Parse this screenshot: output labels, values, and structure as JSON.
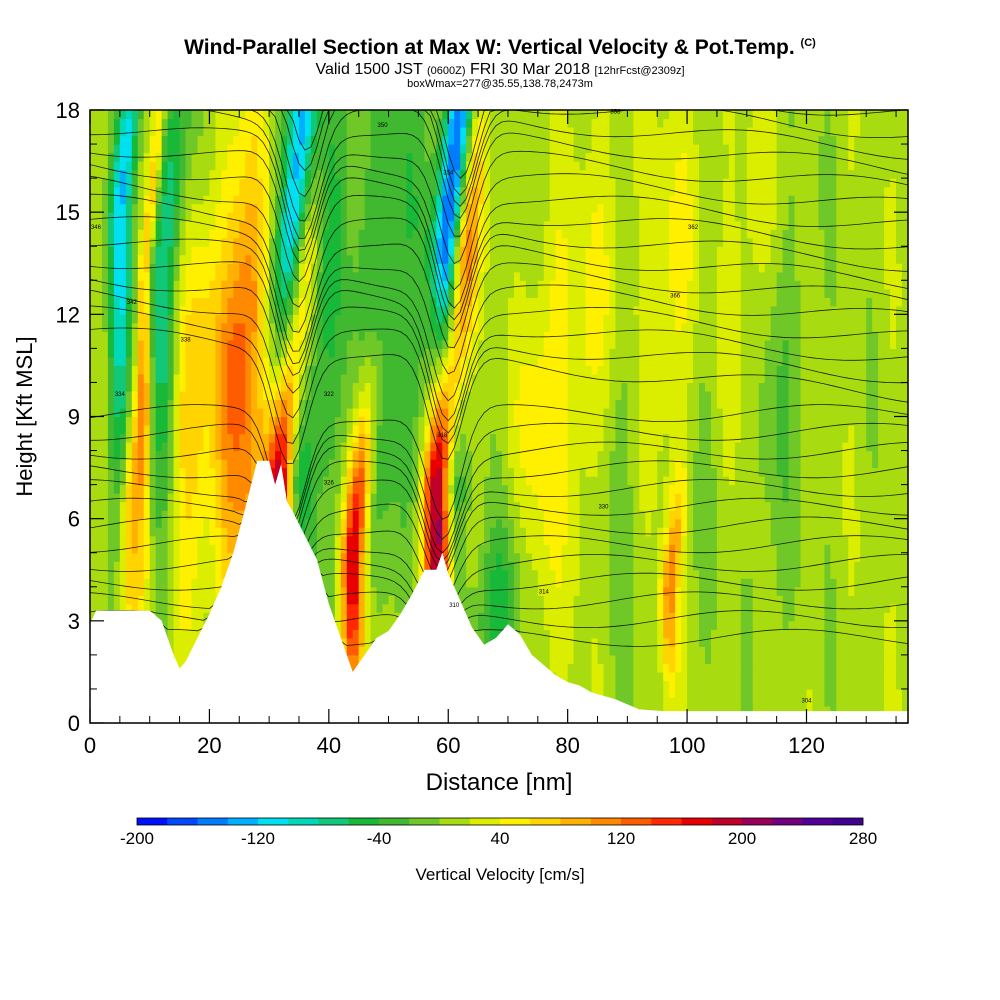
{
  "header": {
    "title": "Wind-Parallel Section at Max W: Vertical Velocity & Pot.Temp.",
    "title_mark": "(C)",
    "valid_label": "Valid 1500 JST",
    "valid_zulu": "(0600Z)",
    "valid_date": "FRI 30 Mar 2018",
    "forecast_info": "[12hrFcst@2309z]",
    "box_info": "boxWmax=277@35.55,138.78,2473m"
  },
  "chart_data": {
    "type": "heatmap",
    "xlabel": "Distance [nm]",
    "ylabel": "Height [Kft MSL]",
    "xlim": [
      0,
      137
    ],
    "ylim": [
      0,
      18
    ],
    "x_ticks": [
      0,
      20,
      40,
      60,
      80,
      100,
      120
    ],
    "y_ticks": [
      0,
      3,
      6,
      9,
      12,
      15,
      18
    ],
    "x_tick_labels": [
      "0",
      "20",
      "40",
      "60",
      "80",
      "100",
      "120"
    ],
    "y_tick_labels": [
      "0",
      "3",
      "6",
      "9",
      "12",
      "15",
      "18"
    ],
    "colorbar": {
      "label": "Vertical Velocity [cm/s]",
      "min": -200,
      "max": 280,
      "step": 20,
      "tick_values": [
        -200,
        -120,
        -40,
        40,
        120,
        200,
        280
      ],
      "tick_labels": [
        "-200",
        "-120",
        "-40",
        "40",
        "120",
        "200",
        "280"
      ],
      "colors": [
        "#0010ff",
        "#0048ff",
        "#007cff",
        "#00b0ff",
        "#00e0f0",
        "#00d8b8",
        "#10c878",
        "#18b838",
        "#40b830",
        "#70c828",
        "#a8dc10",
        "#dcee00",
        "#fff000",
        "#ffd400",
        "#ffb000",
        "#ff8a00",
        "#ff5c00",
        "#ff2800",
        "#e80000",
        "#c00028",
        "#980058",
        "#700080",
        "#500098",
        "#400090"
      ]
    },
    "terrain": [
      [
        0,
        2.9
      ],
      [
        1,
        3.3
      ],
      [
        6,
        3.3
      ],
      [
        10,
        3.3
      ],
      [
        12,
        3.0
      ],
      [
        14,
        2.0
      ],
      [
        15,
        1.6
      ],
      [
        16,
        1.8
      ],
      [
        18,
        2.5
      ],
      [
        20,
        3.2
      ],
      [
        22,
        4.0
      ],
      [
        24,
        5.0
      ],
      [
        26,
        6.3
      ],
      [
        28,
        7.7
      ],
      [
        30,
        7.7
      ],
      [
        31,
        7.0
      ],
      [
        32,
        7.6
      ],
      [
        33,
        6.5
      ],
      [
        34,
        6.2
      ],
      [
        36,
        5.5
      ],
      [
        38,
        4.8
      ],
      [
        40,
        3.5
      ],
      [
        42,
        2.5
      ],
      [
        44,
        1.5
      ],
      [
        46,
        2.0
      ],
      [
        48,
        2.5
      ],
      [
        50,
        2.7
      ],
      [
        52,
        3.2
      ],
      [
        54,
        3.8
      ],
      [
        56,
        4.5
      ],
      [
        58,
        4.5
      ],
      [
        59,
        5.0
      ],
      [
        60,
        4.4
      ],
      [
        62,
        3.6
      ],
      [
        64,
        2.8
      ],
      [
        66,
        2.3
      ],
      [
        68,
        2.5
      ],
      [
        70,
        2.9
      ],
      [
        72,
        2.6
      ],
      [
        74,
        2.0
      ],
      [
        76,
        1.7
      ],
      [
        78,
        1.4
      ],
      [
        80,
        1.2
      ],
      [
        82,
        1.1
      ],
      [
        84,
        0.9
      ],
      [
        88,
        0.7
      ],
      [
        92,
        0.4
      ],
      [
        96,
        0.35
      ],
      [
        137,
        0.35
      ]
    ],
    "updrafts": [
      [
        6.5,
        2,
        6,
        90,
        5
      ],
      [
        18,
        5,
        9,
        80,
        6
      ],
      [
        32,
        2.5,
        7,
        260,
        9
      ],
      [
        44,
        2.0,
        5,
        170,
        5
      ],
      [
        58.5,
        2.5,
        7,
        277,
        9
      ],
      [
        97,
        1.5,
        4,
        100,
        3
      ],
      [
        26,
        5,
        11,
        120,
        8
      ],
      [
        9,
        1,
        13,
        80,
        8
      ],
      [
        75,
        4,
        9,
        40,
        6
      ],
      [
        83,
        5,
        10,
        40,
        7
      ],
      [
        96,
        6,
        12,
        40,
        6
      ],
      [
        108,
        5,
        12,
        40,
        6
      ]
    ],
    "downdrafts": [
      [
        34,
        3,
        14,
        -190,
        11
      ],
      [
        60,
        2.5,
        14,
        -195,
        12
      ],
      [
        5,
        2,
        15,
        -120,
        9
      ],
      [
        12,
        2.5,
        13,
        -90,
        8
      ],
      [
        40,
        4,
        15,
        -50,
        9
      ],
      [
        68,
        4,
        3,
        -60,
        3
      ],
      [
        20,
        3,
        9,
        -40,
        6
      ],
      [
        30,
        2.5,
        16,
        -60,
        8
      ],
      [
        48,
        4,
        14,
        -30,
        8
      ],
      [
        52,
        6,
        12,
        -40,
        8
      ],
      [
        88,
        6,
        8,
        -30,
        6
      ],
      [
        104,
        5,
        10,
        -30,
        6
      ],
      [
        114,
        5,
        9,
        -30,
        6
      ]
    ],
    "contour_labels": [
      {
        "text": "346",
        "x": 1,
        "y": 14.5
      },
      {
        "text": "342",
        "x": 7,
        "y": 12.3
      },
      {
        "text": "338",
        "x": 16,
        "y": 11.2
      },
      {
        "text": "334",
        "x": 5,
        "y": 9.6
      },
      {
        "text": "326",
        "x": 40,
        "y": 7.0
      },
      {
        "text": "322",
        "x": 40,
        "y": 9.6
      },
      {
        "text": "318",
        "x": 59,
        "y": 8.4
      },
      {
        "text": "314",
        "x": 76,
        "y": 3.8
      },
      {
        "text": "310",
        "x": 61,
        "y": 3.4
      },
      {
        "text": "350",
        "x": 49,
        "y": 17.5
      },
      {
        "text": "354",
        "x": 60,
        "y": 16.1
      },
      {
        "text": "358",
        "x": 88,
        "y": 17.9
      },
      {
        "text": "362",
        "x": 101,
        "y": 14.5
      },
      {
        "text": "366",
        "x": 98,
        "y": 12.5
      },
      {
        "text": "330",
        "x": 86,
        "y": 6.3
      },
      {
        "text": "304",
        "x": 120,
        "y": 0.6
      }
    ]
  }
}
